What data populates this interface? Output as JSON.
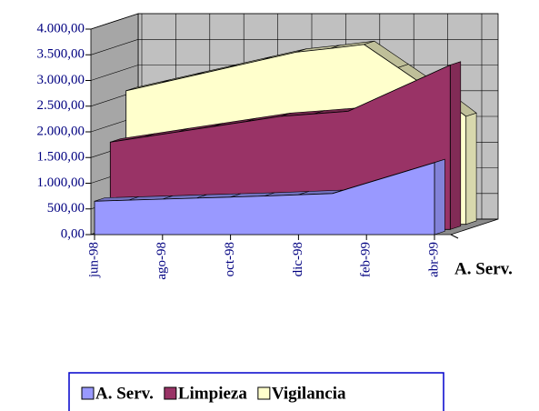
{
  "chart_data": {
    "type": "area3d",
    "categories": [
      "jun-98",
      null,
      "ago-98",
      null,
      "oct-98",
      null,
      "dic-98",
      null,
      "feb-99",
      null,
      "abr-99"
    ],
    "series": [
      {
        "name": "A. Serv.",
        "color": "#9999ff",
        "values": [
          650,
          670,
          690,
          710,
          730,
          750,
          775,
          800,
          1000,
          1200,
          1400
        ]
      },
      {
        "name": "Limpieza",
        "color": "#993366",
        "values": [
          1700,
          1800,
          1900,
          2000,
          2100,
          2200,
          2250,
          2300,
          2600,
          2900,
          3200
        ]
      },
      {
        "name": "Vigilancia",
        "color": "#ffffcc",
        "values": [
          2600,
          2750,
          2900,
          3050,
          3200,
          3350,
          3420,
          3500,
          3050,
          2600,
          2100
        ]
      }
    ],
    "depth_label": "A. Serv.",
    "ylim": [
      0,
      4000
    ],
    "yticks": [
      {
        "value": 0,
        "label": "0,00"
      },
      {
        "value": 500,
        "label": "500,00"
      },
      {
        "value": 1000,
        "label": "1.000,00"
      },
      {
        "value": 1500,
        "label": "1.500,00"
      },
      {
        "value": 2000,
        "label": "2.000,00"
      },
      {
        "value": 2500,
        "label": "2.500,00"
      },
      {
        "value": 3000,
        "label": "3.000,00"
      },
      {
        "value": 3500,
        "label": "3.500,00"
      },
      {
        "value": 4000,
        "label": "4.000,00"
      }
    ],
    "grid": true
  }
}
